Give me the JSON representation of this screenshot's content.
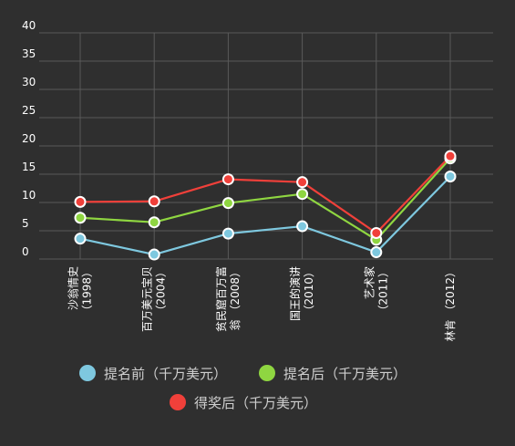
{
  "chart_data": {
    "type": "line",
    "title": "",
    "xlabel": "",
    "ylabel": "",
    "ylim": [
      0,
      40
    ],
    "yticks": [
      0,
      5,
      10,
      15,
      20,
      25,
      30,
      35,
      40
    ],
    "grid": true,
    "legend_position": "bottom",
    "categories": [
      [
        "沙翁情史",
        "（1998）"
      ],
      [
        "百万美元宝贝",
        "（2004）"
      ],
      [
        "贫民窟百万富",
        "翁 （2008）"
      ],
      [
        "国王的演讲",
        "（2010）"
      ],
      [
        "艺术家",
        "（2011）"
      ],
      [
        "林肯 （2012）"
      ]
    ],
    "series": [
      {
        "name": "提名前（千万美元）",
        "color": "#7ec8df",
        "values": [
          3.6,
          0.8,
          4.5,
          5.8,
          1.2,
          14.6
        ]
      },
      {
        "name": "提名后（千万美元）",
        "color": "#8fd641",
        "values": [
          7.3,
          6.5,
          9.9,
          11.5,
          3.4,
          17.8
        ]
      },
      {
        "name": "得奖后（千万美元）",
        "color": "#f0403a",
        "values": [
          10.1,
          10.2,
          14.1,
          13.6,
          4.6,
          18.2
        ]
      }
    ]
  }
}
